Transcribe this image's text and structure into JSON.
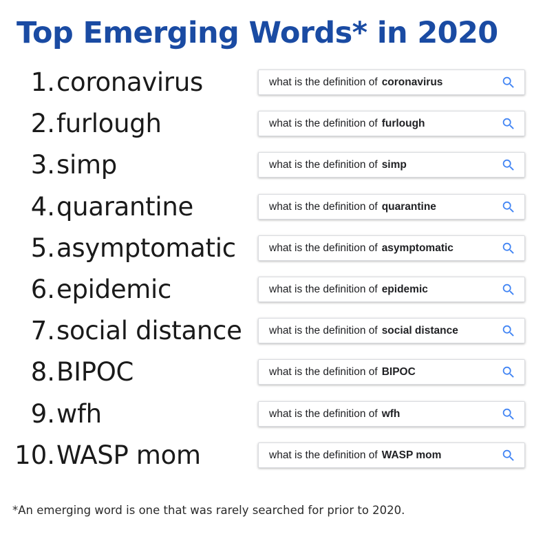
{
  "title": "Top Emerging Words* in 2020",
  "query_prefix": "what is the definition of",
  "accent_color": "#1a4ba3",
  "search_icon_color": "#4285f4",
  "search_icon": "magnifying-glass-icon",
  "words": [
    {
      "rank": "1.",
      "word": "coronavirus"
    },
    {
      "rank": "2.",
      "word": "furlough"
    },
    {
      "rank": "3.",
      "word": "simp"
    },
    {
      "rank": "4.",
      "word": "quarantine"
    },
    {
      "rank": "5.",
      "word": "asymptomatic"
    },
    {
      "rank": "6.",
      "word": "epidemic"
    },
    {
      "rank": "7.",
      "word": "social distance"
    },
    {
      "rank": "8.",
      "word": "BIPOC"
    },
    {
      "rank": "9.",
      "word": "wfh"
    },
    {
      "rank": "10.",
      "word": "WASP mom"
    }
  ],
  "footnote": "*An emerging word is one that was rarely searched for prior to 2020."
}
